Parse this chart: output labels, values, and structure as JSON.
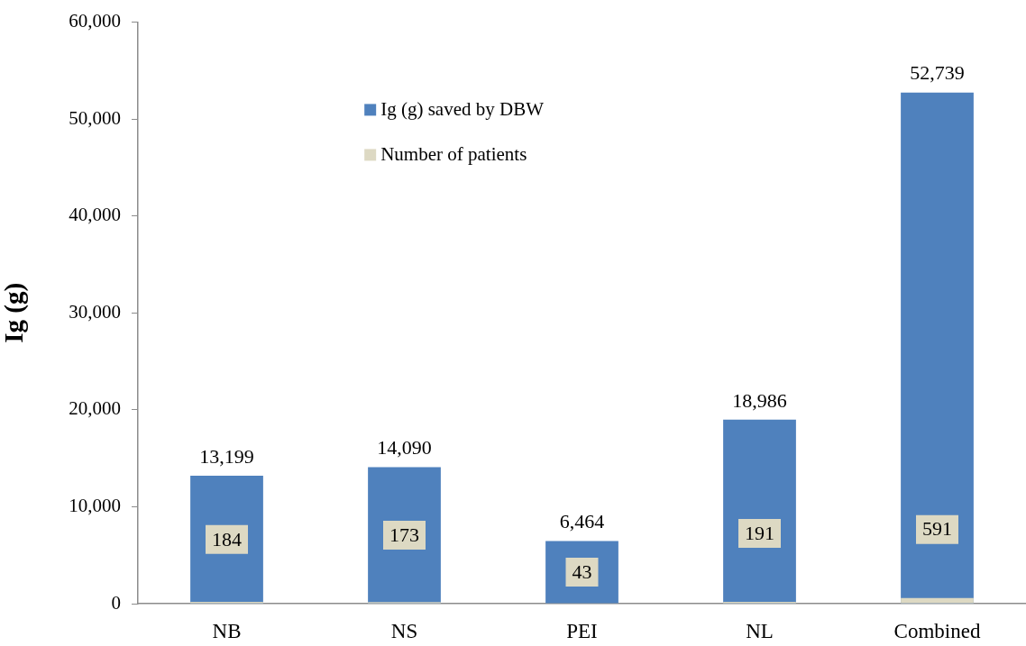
{
  "chart_data": {
    "type": "bar",
    "ylabel": "Ig (g)",
    "categories": [
      "NB",
      "NS",
      "PEI",
      "NL",
      "Combined"
    ],
    "series": [
      {
        "name": "Ig (g) saved by DBW",
        "color": "#4f81bd",
        "values": [
          13199,
          14090,
          6464,
          18986,
          52739
        ],
        "value_labels": [
          "13,199",
          "14,090",
          "6,464",
          "18,986",
          "52,739"
        ]
      },
      {
        "name": "Number of patients",
        "color": "#ddd9c3",
        "values": [
          184,
          173,
          43,
          191,
          591
        ],
        "value_labels": [
          "184",
          "173",
          "43",
          "191",
          "591"
        ]
      }
    ],
    "ylim": [
      0,
      60000
    ],
    "yticks": [
      0,
      {
        "value": 10000,
        "label": "10,000"
      },
      {
        "value": 20000,
        "label": "20,000"
      },
      {
        "value": 30000,
        "label": "30,000"
      },
      {
        "value": 40000,
        "label": "40,000"
      },
      {
        "value": 50000,
        "label": "50,000"
      },
      {
        "value": 60000,
        "label": "60,000"
      }
    ],
    "legend": "top"
  }
}
